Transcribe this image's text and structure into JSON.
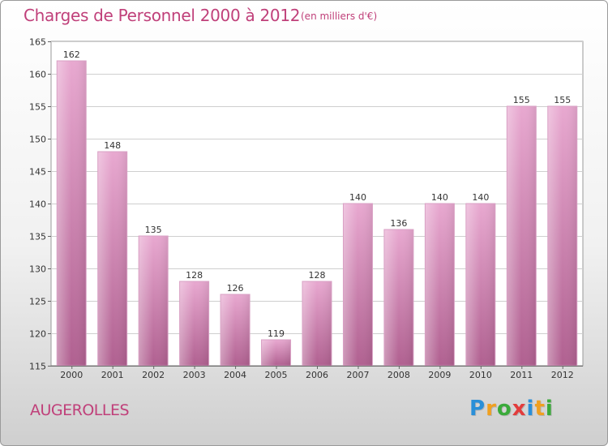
{
  "title": "Charges de Personnel 2000 à 2012",
  "subtitle": "(en milliers d'€)",
  "commune": "AUGEROLLES",
  "logo": {
    "text": "Proxiti",
    "letters": [
      {
        "ch": "P",
        "color": "#2a8fd8"
      },
      {
        "ch": "r",
        "color": "#f0a020"
      },
      {
        "ch": "o",
        "color": "#3aaa3a"
      },
      {
        "ch": "x",
        "color": "#e23c3c"
      },
      {
        "ch": "i",
        "color": "#2a8fd8"
      },
      {
        "ch": "t",
        "color": "#f0a020"
      },
      {
        "ch": "i",
        "color": "#3aaa3a"
      }
    ]
  },
  "colors": {
    "bar_top": "#e8a8d0",
    "bar_bottom": "#b06090",
    "accent": "#c0407a"
  },
  "chart_data": {
    "type": "bar",
    "categories": [
      "2000",
      "2001",
      "2002",
      "2003",
      "2004",
      "2005",
      "2006",
      "2007",
      "2008",
      "2009",
      "2010",
      "2011",
      "2012"
    ],
    "values": [
      162,
      148,
      135,
      128,
      126,
      119,
      128,
      140,
      136,
      140,
      140,
      155,
      155
    ],
    "ylim": [
      115,
      165
    ],
    "yticks": [
      115,
      120,
      125,
      130,
      135,
      140,
      145,
      150,
      155,
      160,
      165
    ],
    "grid": true,
    "xlabel": "",
    "ylabel": ""
  }
}
